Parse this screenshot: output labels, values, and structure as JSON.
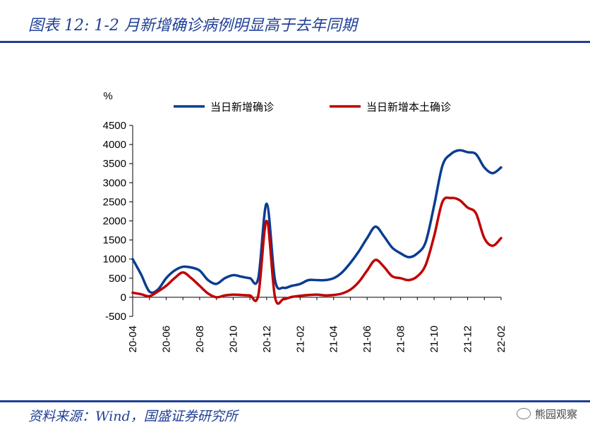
{
  "header": {
    "title": "图表 12:  1-2 月新增确诊病例明显高于去年同期"
  },
  "footer": {
    "source": "资料来源：Wind，国盛证券研究所",
    "watermark": "熊园观察"
  },
  "chart_data": {
    "type": "line",
    "title": "图表 12:  1-2 月新增确诊病例明显高于去年同期",
    "ylabel": "%",
    "ylim": [
      -500,
      4500
    ],
    "yticks": [
      -500,
      0,
      500,
      1000,
      1500,
      2000,
      2500,
      3000,
      3500,
      4000,
      4500
    ],
    "xlim": [
      0,
      22
    ],
    "xtick_labels": [
      "20-04",
      "20-06",
      "20-08",
      "20-10",
      "20-12",
      "21-02",
      "21-04",
      "21-06",
      "21-08",
      "21-10",
      "21-12",
      "22-02"
    ],
    "grid": false,
    "legend_position": "top",
    "series": [
      {
        "name": "当日新增确诊",
        "color": "#0a3d91",
        "x": [
          0,
          0.5,
          1,
          1.5,
          2,
          2.5,
          3,
          3.5,
          4,
          4.5,
          5,
          5.5,
          6,
          6.5,
          7,
          7.5,
          8,
          8.5,
          9,
          9.5,
          10,
          10.5,
          11,
          11.5,
          12,
          12.5,
          13,
          13.5,
          14,
          14.5,
          15,
          15.5,
          16,
          16.5,
          17,
          17.5,
          18,
          18.5,
          19,
          19.5,
          20,
          20.5,
          21,
          21.5,
          22
        ],
        "y": [
          1000,
          600,
          150,
          200,
          500,
          700,
          800,
          780,
          700,
          450,
          350,
          500,
          580,
          540,
          500,
          500,
          2450,
          450,
          250,
          300,
          350,
          450,
          450,
          450,
          500,
          650,
          900,
          1200,
          1550,
          1850,
          1600,
          1300,
          1150,
          1050,
          1150,
          1450,
          2400,
          3450,
          3750,
          3850,
          3800,
          3750,
          3400,
          3250,
          3400
        ]
      },
      {
        "name": "当日新增本土确诊",
        "color": "#c00000",
        "x": [
          0,
          0.5,
          1,
          1.5,
          2,
          2.5,
          3,
          3.5,
          4,
          4.5,
          5,
          5.5,
          6,
          6.5,
          7,
          7.5,
          8,
          8.5,
          9,
          9.5,
          10,
          10.5,
          11,
          11.5,
          12,
          12.5,
          13,
          13.5,
          14,
          14.5,
          15,
          15.5,
          16,
          16.5,
          17,
          17.5,
          18,
          18.5,
          19,
          19.5,
          20,
          20.5,
          21,
          21.5,
          22
        ],
        "y": [
          120,
          80,
          30,
          150,
          300,
          500,
          650,
          500,
          300,
          100,
          0,
          50,
          70,
          60,
          50,
          50,
          2000,
          0,
          -50,
          10,
          40,
          60,
          70,
          50,
          60,
          100,
          200,
          400,
          700,
          980,
          800,
          550,
          500,
          450,
          550,
          850,
          1600,
          2500,
          2600,
          2550,
          2350,
          2200,
          1550,
          1350,
          1550
        ]
      }
    ]
  }
}
